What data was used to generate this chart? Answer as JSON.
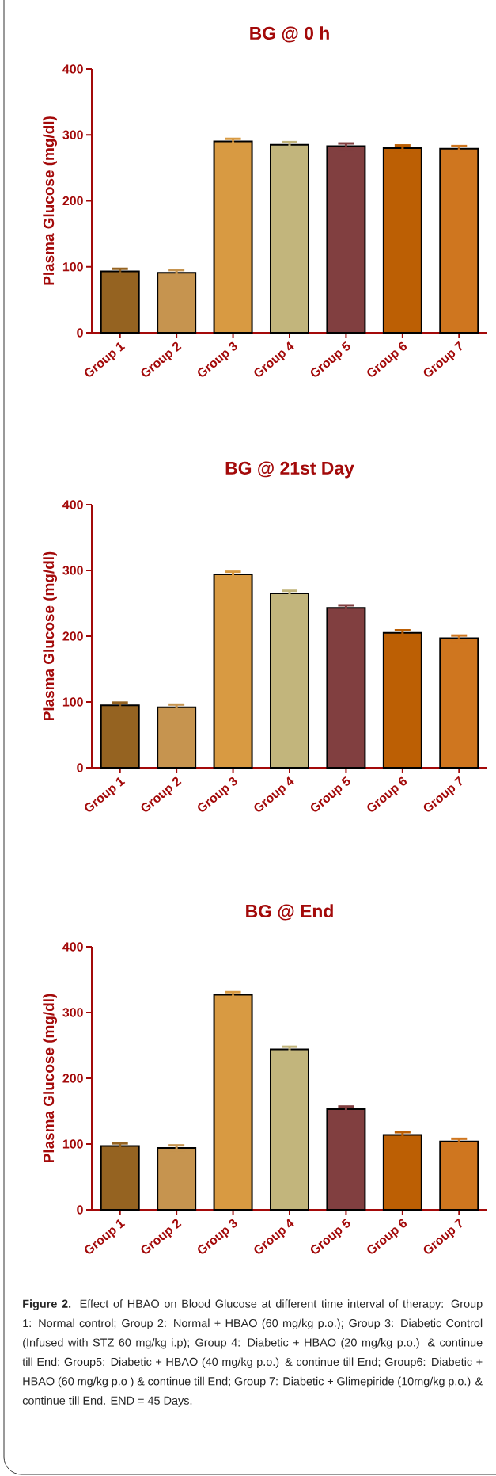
{
  "chart_data": [
    {
      "type": "bar",
      "title": "BG @ 0 h",
      "ylabel": "Plasma  Glucose  (mg/dl)",
      "categories": [
        "Group 1",
        "Group 2",
        "Group 3",
        "Group 4",
        "Group 5",
        "Group 6",
        "Group 7"
      ],
      "values": [
        93,
        91,
        290,
        285,
        283,
        280,
        279
      ],
      "errors": [
        4,
        4,
        4,
        4,
        4,
        4,
        4
      ],
      "colors": [
        "#956321",
        "#c6944f",
        "#d89a42",
        "#c2b57c",
        "#813f40",
        "#bc5f04",
        "#cf761f"
      ],
      "ylim": [
        0,
        400
      ],
      "yticks": [
        0,
        100,
        200,
        300,
        400
      ]
    },
    {
      "type": "bar",
      "title": "BG @ 21st Day",
      "ylabel": "Plasma  Glucose  (mg/dl)",
      "categories": [
        "Group 1",
        "Group 2",
        "Group 3",
        "Group 4",
        "Group 5",
        "Group 6",
        "Group 7"
      ],
      "values": [
        95,
        92,
        294,
        265,
        243,
        205,
        197
      ],
      "errors": [
        4,
        4,
        4,
        4,
        4,
        4,
        4
      ],
      "colors": [
        "#956321",
        "#c6944f",
        "#d89a42",
        "#c2b57c",
        "#813f40",
        "#bc5f04",
        "#cf761f"
      ],
      "ylim": [
        0,
        400
      ],
      "yticks": [
        0,
        100,
        200,
        300,
        400
      ]
    },
    {
      "type": "bar",
      "title": "BG @ End",
      "ylabel": "Plasma  Glucose  (mg/dl)",
      "categories": [
        "Group 1",
        "Group 2",
        "Group 3",
        "Group 4",
        "Group 5",
        "Group 6",
        "Group 7"
      ],
      "values": [
        97,
        94,
        327,
        244,
        153,
        114,
        104
      ],
      "errors": [
        4,
        4,
        4,
        4,
        4,
        4,
        4
      ],
      "colors": [
        "#956321",
        "#c6944f",
        "#d89a42",
        "#c2b57c",
        "#813f40",
        "#bc5f04",
        "#cf761f"
      ],
      "ylim": [
        0,
        400
      ],
      "yticks": [
        0,
        100,
        200,
        300,
        400
      ],
      "annotations": [
        "**Figure 2.** Effect of HBAO on Blood Glucose at different time interval of therapy: Group 1: Normal control; Group 2: Normal + HBAO (60 mg/kg p.o.); Group 3: Diabetic Control (Infused with STZ 60 mg/kg i.p); Group 4: Diabetic + HBAO (20 mg/kg p.o.) & continue till End; Group5: Diabetic + HBAO (40 mg/kg p.o.) & continue till End; Group6: Diabetic + HBAO (60 mg/kg p.o ) & continue till End; Group 7: Diabetic + Glimepiride (10mg/kg p.o.) & continue till End. END = 45 Days."
      ]
    }
  ]
}
